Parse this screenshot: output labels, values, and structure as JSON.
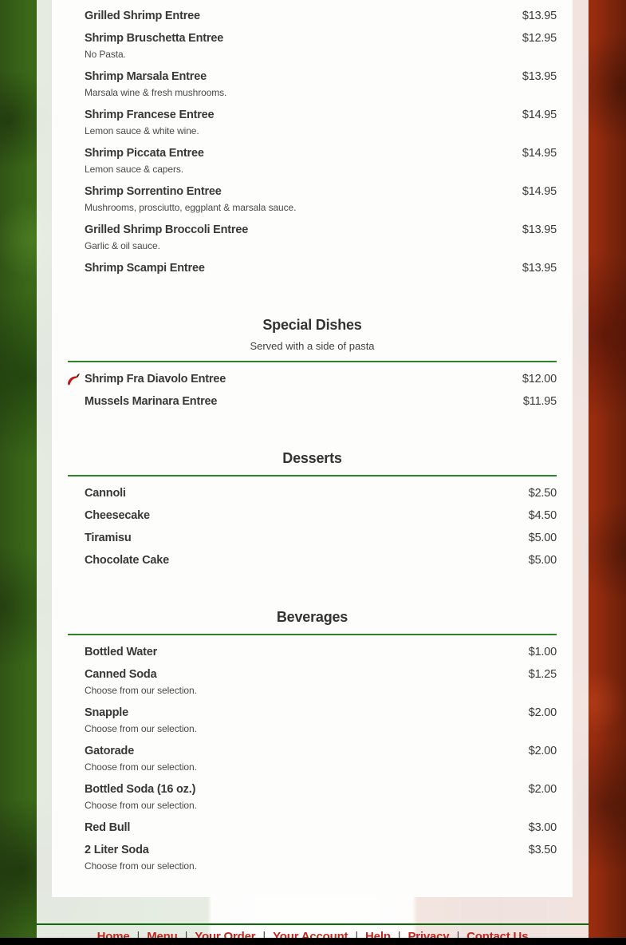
{
  "menu": {
    "sections": [
      {
        "title": "",
        "subtitle": "",
        "items": [
          {
            "name": "Grilled Shrimp Entree",
            "price": "$13.95",
            "desc": ""
          },
          {
            "name": "Shrimp Bruschetta Entree",
            "price": "$12.95",
            "desc": "No Pasta."
          },
          {
            "name": "Shrimp Marsala Entree",
            "price": "$13.95",
            "desc": "Marsala wine & fresh mushrooms."
          },
          {
            "name": "Shrimp Francese Entree",
            "price": "$14.95",
            "desc": "Lemon sauce & white wine."
          },
          {
            "name": "Shrimp Piccata Entree",
            "price": "$14.95",
            "desc": "Lemon sauce & capers."
          },
          {
            "name": "Shrimp Sorrentino Entree",
            "price": "$14.95",
            "desc": "Mushrooms, prosciutto, eggplant & marsala sauce."
          },
          {
            "name": "Grilled Shrimp Broccoli Entree",
            "price": "$13.95",
            "desc": "Garlic & oil sauce."
          },
          {
            "name": "Shrimp Scampi Entree",
            "price": "$13.95",
            "desc": ""
          }
        ]
      },
      {
        "title": "Special Dishes",
        "subtitle": "Served with a side of pasta",
        "items": [
          {
            "name": "Shrimp Fra Diavolo Entree",
            "price": "$12.00",
            "desc": "",
            "spicy": true
          },
          {
            "name": "Mussels Marinara Entree",
            "price": "$11.95",
            "desc": ""
          }
        ]
      },
      {
        "title": "Desserts",
        "subtitle": "",
        "items": [
          {
            "name": "Cannoli",
            "price": "$2.50",
            "desc": ""
          },
          {
            "name": "Cheesecake",
            "price": "$4.50",
            "desc": ""
          },
          {
            "name": "Tiramisu",
            "price": "$5.00",
            "desc": ""
          },
          {
            "name": "Chocolate Cake",
            "price": "$5.00",
            "desc": ""
          }
        ]
      },
      {
        "title": "Beverages",
        "subtitle": "",
        "items": [
          {
            "name": "Bottled Water",
            "price": "$1.00",
            "desc": ""
          },
          {
            "name": "Canned Soda",
            "price": "$1.25",
            "desc": "Choose from our selection."
          },
          {
            "name": "Snapple",
            "price": "$2.00",
            "desc": "Choose from our selection."
          },
          {
            "name": "Gatorade",
            "price": "$2.00",
            "desc": "Choose from our selection."
          },
          {
            "name": "Bottled Soda (16 oz.)",
            "price": "$2.00",
            "desc": "Choose from our selection."
          },
          {
            "name": "Red Bull",
            "price": "$3.00",
            "desc": ""
          },
          {
            "name": "2 Liter Soda",
            "price": "$3.50",
            "desc": "Choose from our selection."
          }
        ]
      }
    ]
  },
  "icons": {
    "spicy": "chili-pepper-icon"
  },
  "footer": {
    "separator": "|",
    "links": [
      "Home",
      "Menu",
      "Your Order",
      "Your Account",
      "Help",
      "Privacy",
      "Contact Us"
    ]
  },
  "colors": {
    "section_rule_green": "#2a852a",
    "footer_rule_green": "#0b6b0b",
    "footer_link_red": "#c3261f",
    "flag_green": "#3a691a",
    "flag_red": "#9a2d0f",
    "spicy_icon_red": "#c1150f",
    "item_text": "#383838",
    "bottom_bar": "#000000"
  }
}
